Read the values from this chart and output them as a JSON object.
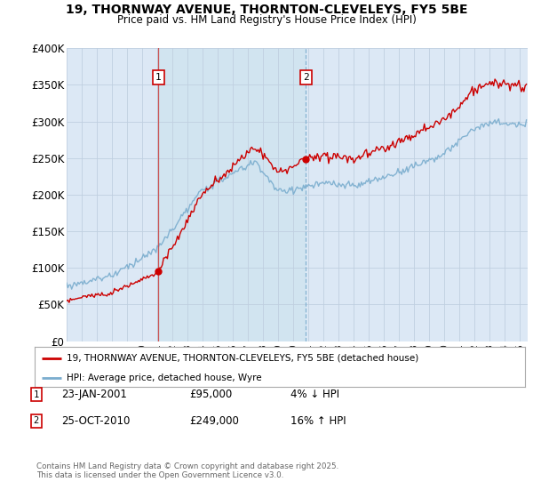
{
  "title_line1": "19, THORNWAY AVENUE, THORNTON-CLEVELEYS, FY5 5BE",
  "title_line2": "Price paid vs. HM Land Registry's House Price Index (HPI)",
  "ylabel_vals": [
    "£0",
    "£50K",
    "£100K",
    "£150K",
    "£200K",
    "£250K",
    "£300K",
    "£350K",
    "£400K"
  ],
  "yticks": [
    0,
    50000,
    100000,
    150000,
    200000,
    250000,
    300000,
    350000,
    400000
  ],
  "xmin": 1995.0,
  "xmax": 2025.5,
  "ymin": 0,
  "ymax": 400000,
  "annotation1": {
    "x": 2001.06,
    "label": "1"
  },
  "annotation2": {
    "x": 2010.82,
    "label": "2"
  },
  "vline1_x": 2001.06,
  "vline2_x": 2010.82,
  "line_color_property": "#cc0000",
  "line_color_hpi": "#7aadce",
  "shade_color": "#d0e4f0",
  "legend_property_label": "19, THORNWAY AVENUE, THORNTON-CLEVELEYS, FY5 5BE (detached house)",
  "legend_hpi_label": "HPI: Average price, detached house, Wyre",
  "note1_label": "1",
  "note1_date": "23-JAN-2001",
  "note1_price": "£95,000",
  "note1_change": "4% ↓ HPI",
  "note2_label": "2",
  "note2_date": "25-OCT-2010",
  "note2_price": "£249,000",
  "note2_change": "16% ↑ HPI",
  "footer": "Contains HM Land Registry data © Crown copyright and database right 2025.\nThis data is licensed under the Open Government Licence v3.0.",
  "background_color": "#dce8f5",
  "grid_color": "#c0cfe0",
  "sale1_price": 95000,
  "sale2_price": 249000,
  "sale1_year": 2001.06,
  "sale2_year": 2010.82
}
